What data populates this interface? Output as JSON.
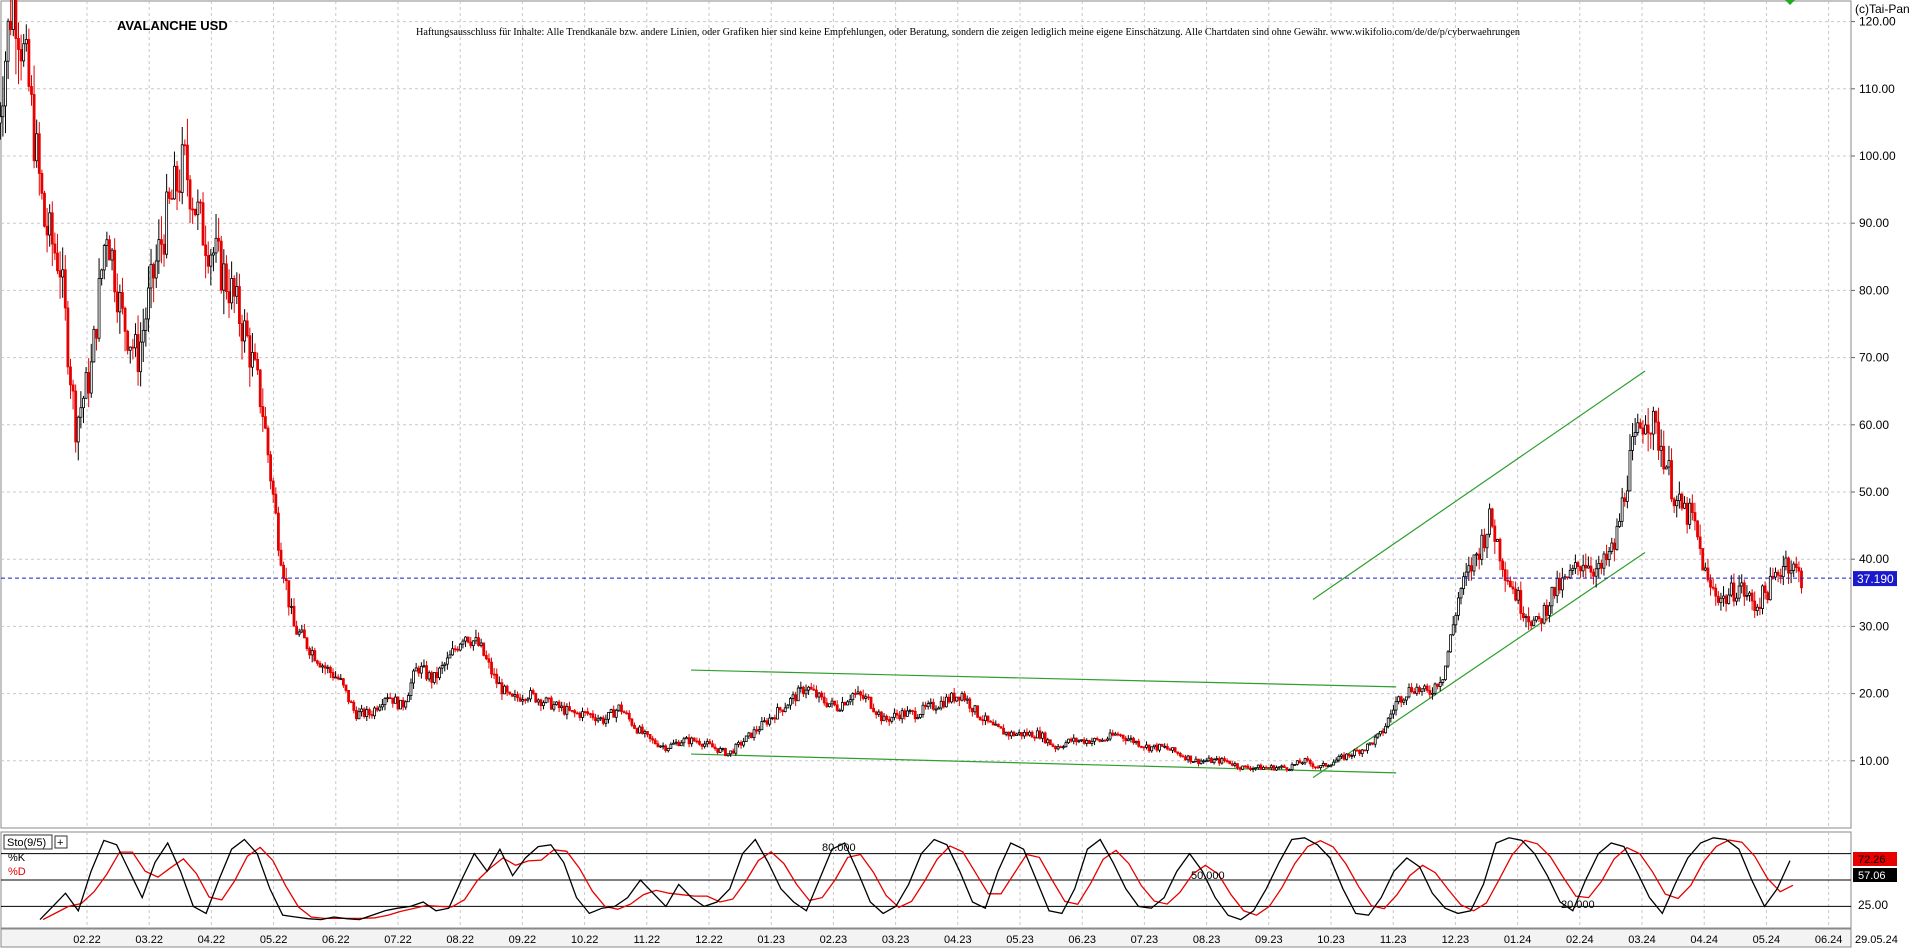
{
  "chart_data": [
    {
      "type": "candlestick",
      "title": "AVALANCHE USD",
      "credit": "(c)Tai-Pan",
      "disclaimer": "Haftungsausschluss für Inhalte: Alle Trendkanäle bzw. andere Linien, oder Grafiken hier sind keine Empfehlungen, oder Beratung, sondern die zeigen lediglich meine eigene Einschätzung. Alle Chartdaten sind ohne Gewähr. www.wikifolio.com/de/de/p/cyberwaehrungen",
      "y_ticks": [
        "120.00",
        "110.00",
        "100.00",
        "90.00",
        "80.00",
        "70.00",
        "60.00",
        "50.00",
        "40.00",
        "30.00",
        "20.00",
        "10.00"
      ],
      "ylim": [
        0,
        129
      ],
      "x_ticks": [
        "02.22",
        "03.22",
        "04.22",
        "05.22",
        "06.22",
        "07.22",
        "08.22",
        "09.22",
        "10.22",
        "11.22",
        "12.22",
        "01.23",
        "02.23",
        "03.23",
        "04.23",
        "05.23",
        "06.23",
        "07.23",
        "08.23",
        "09.23",
        "10.23",
        "11.23",
        "12.23",
        "01.24",
        "02.24",
        "03.24",
        "04.24",
        "05.24",
        "06.24"
      ],
      "date_label": "29.05.24",
      "last_price": "37.190",
      "last_price_value": 37.19,
      "price_path": [
        [
          "01.22",
          105
        ],
        [
          "01.22",
          125
        ],
        [
          "01.22",
          110
        ],
        [
          "01.22",
          90
        ],
        [
          "02.22",
          84
        ],
        [
          "02.22",
          60
        ],
        [
          "02.22",
          68
        ],
        [
          "02.22",
          90
        ],
        [
          "03.22",
          76
        ],
        [
          "03.22",
          70
        ],
        [
          "03.22",
          82
        ],
        [
          "03.22",
          92
        ],
        [
          "04.22",
          99
        ],
        [
          "04.22",
          90
        ],
        [
          "04.22",
          85
        ],
        [
          "04.22",
          80
        ],
        [
          "05.22",
          73
        ],
        [
          "05.22",
          63
        ],
        [
          "05.22",
          44
        ],
        [
          "05.22",
          30
        ],
        [
          "06.22",
          27
        ],
        [
          "06.22",
          24
        ],
        [
          "06.22",
          22
        ],
        [
          "06.22",
          17
        ],
        [
          "07.22",
          17
        ],
        [
          "07.22",
          20
        ],
        [
          "07.22",
          18
        ],
        [
          "07.22",
          24
        ],
        [
          "08.22",
          22
        ],
        [
          "08.22",
          25
        ],
        [
          "08.22",
          29
        ],
        [
          "08.22",
          27
        ],
        [
          "09.22",
          22
        ],
        [
          "09.22",
          19
        ],
        [
          "09.22",
          20
        ],
        [
          "09.22",
          19
        ],
        [
          "10.22",
          18
        ],
        [
          "10.22",
          17
        ],
        [
          "10.22",
          17
        ],
        [
          "10.22",
          16
        ],
        [
          "11.22",
          18
        ],
        [
          "11.22",
          15
        ],
        [
          "11.22",
          13
        ],
        [
          "11.22",
          12
        ],
        [
          "12.22",
          13
        ],
        [
          "12.22",
          13
        ],
        [
          "12.22",
          12
        ],
        [
          "12.22",
          11
        ],
        [
          "01.23",
          13
        ],
        [
          "01.23",
          15
        ],
        [
          "01.23",
          17
        ],
        [
          "01.23",
          19
        ],
        [
          "02.23",
          21
        ],
        [
          "02.23",
          19
        ],
        [
          "02.23",
          18
        ],
        [
          "02.23",
          20
        ],
        [
          "03.23",
          19
        ],
        [
          "03.23",
          16
        ],
        [
          "03.23",
          17
        ],
        [
          "03.23",
          17
        ],
        [
          "04.23",
          18
        ],
        [
          "04.23",
          19
        ],
        [
          "04.23",
          20
        ],
        [
          "04.23",
          17
        ],
        [
          "05.23",
          15
        ],
        [
          "05.23",
          14
        ],
        [
          "05.23",
          14
        ],
        [
          "05.23",
          14
        ],
        [
          "06.23",
          12
        ],
        [
          "06.23",
          13
        ],
        [
          "06.23",
          13
        ],
        [
          "06.23",
          13
        ],
        [
          "07.23",
          14
        ],
        [
          "07.23",
          13
        ],
        [
          "07.23",
          12
        ],
        [
          "07.23",
          12
        ],
        [
          "08.23",
          11
        ],
        [
          "08.23",
          10
        ],
        [
          "08.23",
          10
        ],
        [
          "08.23",
          10
        ],
        [
          "09.23",
          9
        ],
        [
          "09.23",
          9
        ],
        [
          "09.23",
          9
        ],
        [
          "09.23",
          9
        ],
        [
          "10.23",
          10
        ],
        [
          "10.23",
          9
        ],
        [
          "10.23",
          10
        ],
        [
          "10.23",
          11
        ],
        [
          "11.23",
          12
        ],
        [
          "11.23",
          14
        ],
        [
          "11.23",
          19
        ],
        [
          "11.23",
          21
        ],
        [
          "12.23",
          20
        ],
        [
          "12.23",
          23
        ],
        [
          "12.23",
          35
        ],
        [
          "12.23",
          40
        ],
        [
          "01.24",
          46
        ],
        [
          "01.24",
          38
        ],
        [
          "01.24",
          33
        ],
        [
          "01.24",
          30
        ],
        [
          "02.24",
          35
        ],
        [
          "02.24",
          37
        ],
        [
          "02.24",
          40
        ],
        [
          "02.24",
          38
        ],
        [
          "03.24",
          42
        ],
        [
          "03.24",
          55
        ],
        [
          "03.24",
          62
        ],
        [
          "03.24",
          57
        ],
        [
          "04.24",
          48
        ],
        [
          "04.24",
          46
        ],
        [
          "04.24",
          36
        ],
        [
          "04.24",
          34
        ],
        [
          "05.24",
          36
        ],
        [
          "05.24",
          33
        ],
        [
          "05.24",
          36
        ],
        [
          "05.24",
          40
        ],
        [
          "06.24",
          37.19
        ]
      ],
      "trendlines": [
        {
          "color": "#2f9e2f",
          "from": [
            "12.22",
            23.5
          ],
          "to": [
            "11.23",
            21
          ]
        },
        {
          "color": "#2f9e2f",
          "from": [
            "12.22",
            11
          ],
          "to": [
            "11.23",
            8.2
          ]
        },
        {
          "color": "#2f9e2f",
          "from": [
            "10.23",
            34
          ],
          "to": [
            "03.24",
            68
          ]
        },
        {
          "color": "#2f9e2f",
          "from": [
            "10.23",
            7.5
          ],
          "to": [
            "03.24",
            41
          ]
        }
      ]
    },
    {
      "type": "line",
      "name": "Sto(9/5)",
      "series": [
        {
          "name": "%K",
          "color": "#000000"
        },
        {
          "name": "%D",
          "color": "#e60000"
        }
      ],
      "k_label": "%K",
      "d_label": "%D",
      "upper_level": "80.000",
      "mid_level": "50.000",
      "lower_level": "20.000",
      "y_tick": "25.00",
      "mid_tick": "50.00",
      "k_last": "72.26",
      "d_last": "57.06",
      "ylim": [
        0,
        100
      ],
      "k_values": [
        5,
        20,
        35,
        15,
        60,
        95,
        90,
        60,
        30,
        70,
        92,
        60,
        20,
        12,
        50,
        85,
        96,
        80,
        40,
        10,
        8,
        6,
        5,
        8,
        6,
        5,
        10,
        15,
        18,
        20,
        25,
        15,
        18,
        50,
        80,
        60,
        85,
        55,
        75,
        88,
        90,
        70,
        30,
        12,
        18,
        20,
        30,
        50,
        35,
        20,
        45,
        30,
        20,
        25,
        40,
        80,
        96,
        70,
        40,
        25,
        15,
        50,
        85,
        92,
        60,
        25,
        12,
        20,
        45,
        80,
        96,
        90,
        60,
        25,
        18,
        60,
        92,
        85,
        50,
        15,
        12,
        40,
        85,
        96,
        70,
        40,
        20,
        18,
        30,
        60,
        80,
        60,
        30,
        10,
        5,
        15,
        40,
        70,
        96,
        98,
        90,
        75,
        40,
        12,
        10,
        30,
        60,
        75,
        65,
        35,
        18,
        12,
        15,
        45,
        92,
        98,
        95,
        80,
        55,
        25,
        15,
        50,
        80,
        92,
        88,
        60,
        30,
        12,
        45,
        75,
        92,
        98,
        96,
        85,
        50,
        20,
        40,
        72
      ]
    }
  ]
}
